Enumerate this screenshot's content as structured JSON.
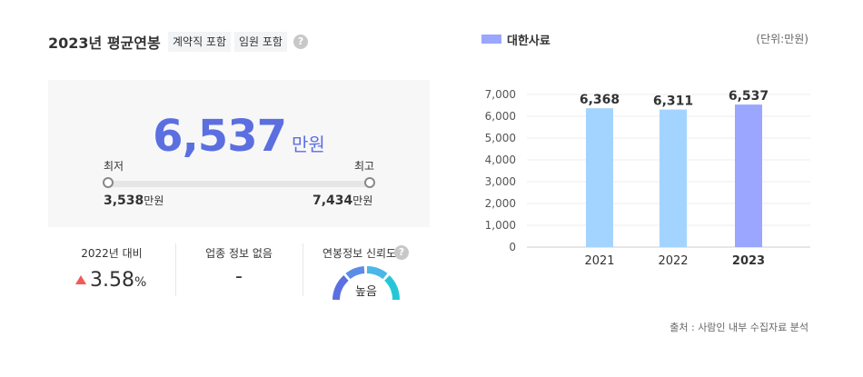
{
  "header": {
    "title": "2023년 평균연봉",
    "tags": [
      "계약직 포함",
      "임원 포함"
    ],
    "help_icon": "question-icon"
  },
  "summary": {
    "average": "6,537",
    "average_unit": "만원",
    "min_label": "최저",
    "max_label": "최고",
    "min_value": "3,538",
    "max_value": "7,434",
    "value_unit": "만원"
  },
  "stats": {
    "change_label": "2022년 대비",
    "change_value": "3.58",
    "change_unit": "%",
    "change_direction": "up",
    "industry_label": "업종 정보 없음",
    "industry_value": "-",
    "reliability_label": "연봉정보 신뢰도",
    "reliability_value": "높음"
  },
  "colors": {
    "accent": "#5b6fe0",
    "bar_past": "#a3d4ff",
    "bar_current": "#9aa6ff",
    "up": "#f05a5a"
  },
  "chart_data": {
    "type": "bar",
    "categories": [
      "2021",
      "2022",
      "2023"
    ],
    "series": [
      {
        "name": "대한사료",
        "values": [
          6368,
          6311,
          6537
        ]
      }
    ],
    "value_labels": [
      "6,368",
      "6,311",
      "6,537"
    ],
    "y_ticks": [
      "0",
      "1,000",
      "2,000",
      "3,000",
      "4,000",
      "5,000",
      "6,000",
      "7,000"
    ],
    "ylim": [
      0,
      7000
    ],
    "unit_label": "(단위:만원)",
    "highlight_index": 2,
    "grid": true,
    "legend": "top-left"
  },
  "footer": {
    "source": "출처 : 사람인 내부 수집자료 분석"
  }
}
